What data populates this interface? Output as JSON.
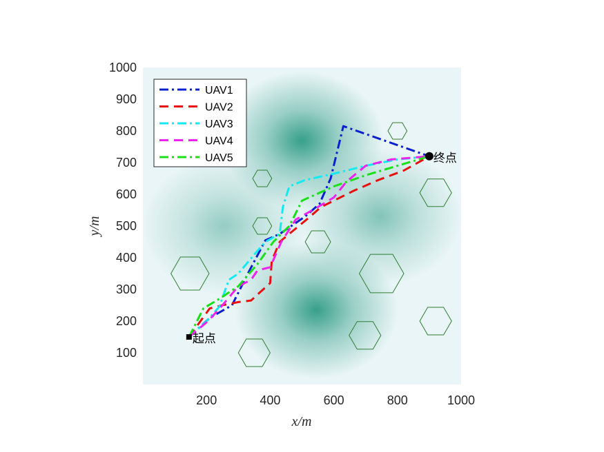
{
  "chart_data": {
    "type": "line",
    "xlabel": "x/m",
    "ylabel": "y/m",
    "xlim": [
      0,
      1000
    ],
    "ylim": [
      0,
      1000
    ],
    "xticks": [
      200,
      400,
      600,
      800,
      1000
    ],
    "yticks": [
      100,
      200,
      300,
      400,
      500,
      600,
      700,
      800,
      900,
      1000
    ],
    "grid": false,
    "legend_position": "top-left",
    "background_color": "#e9f5f6",
    "threat_color": "#2e9b85",
    "obstacle_color": "#2e7d32",
    "start": {
      "x": 145,
      "y": 150,
      "label": "起点"
    },
    "goal": {
      "x": 900,
      "y": 720,
      "label": "终点"
    },
    "threat_zones": [
      {
        "x": 500,
        "y": 770,
        "peak": 0.95
      },
      {
        "x": 545,
        "y": 235,
        "peak": 0.95
      },
      {
        "x": 745,
        "y": 530,
        "peak": 0.55
      },
      {
        "x": 255,
        "y": 500,
        "peak": 0.45
      }
    ],
    "obstacles": [
      {
        "x": 148,
        "y": 350,
        "r": 60
      },
      {
        "x": 350,
        "y": 100,
        "r": 50
      },
      {
        "x": 375,
        "y": 650,
        "r": 30
      },
      {
        "x": 375,
        "y": 500,
        "r": 30
      },
      {
        "x": 550,
        "y": 450,
        "r": 40
      },
      {
        "x": 750,
        "y": 350,
        "r": 70
      },
      {
        "x": 698,
        "y": 155,
        "r": 50
      },
      {
        "x": 800,
        "y": 800,
        "r": 30
      },
      {
        "x": 920,
        "y": 605,
        "r": 50
      },
      {
        "x": 920,
        "y": 200,
        "r": 50
      }
    ],
    "series": [
      {
        "name": "UAV1",
        "color": "#0a1fd0",
        "dash": "dashdot",
        "points": [
          [
            145,
            150
          ],
          [
            210,
            210
          ],
          [
            280,
            250
          ],
          [
            330,
            350
          ],
          [
            385,
            455
          ],
          [
            430,
            475
          ],
          [
            510,
            530
          ],
          [
            555,
            570
          ],
          [
            590,
            650
          ],
          [
            630,
            815
          ],
          [
            900,
            720
          ]
        ]
      },
      {
        "name": "UAV2",
        "color": "#e80f0f",
        "dash": "dashed",
        "points": [
          [
            145,
            150
          ],
          [
            210,
            240
          ],
          [
            250,
            250
          ],
          [
            300,
            260
          ],
          [
            340,
            265
          ],
          [
            400,
            320
          ],
          [
            405,
            390
          ],
          [
            430,
            450
          ],
          [
            520,
            525
          ],
          [
            560,
            560
          ],
          [
            660,
            610
          ],
          [
            740,
            645
          ],
          [
            820,
            675
          ],
          [
            900,
            720
          ]
        ]
      },
      {
        "name": "UAV3",
        "color": "#12eaf2",
        "dash": "dashdot",
        "points": [
          [
            145,
            150
          ],
          [
            200,
            200
          ],
          [
            240,
            245
          ],
          [
            270,
            330
          ],
          [
            300,
            350
          ],
          [
            350,
            410
          ],
          [
            385,
            450
          ],
          [
            430,
            475
          ],
          [
            440,
            560
          ],
          [
            460,
            625
          ],
          [
            510,
            645
          ],
          [
            600,
            665
          ],
          [
            700,
            690
          ],
          [
            800,
            710
          ],
          [
            900,
            720
          ]
        ]
      },
      {
        "name": "UAV4",
        "color": "#ee22ee",
        "dash": "dashed",
        "points": [
          [
            145,
            150
          ],
          [
            205,
            200
          ],
          [
            250,
            250
          ],
          [
            300,
            310
          ],
          [
            340,
            330
          ],
          [
            360,
            360
          ],
          [
            400,
            370
          ],
          [
            435,
            450
          ],
          [
            480,
            520
          ],
          [
            550,
            560
          ],
          [
            600,
            590
          ],
          [
            640,
            640
          ],
          [
            700,
            690
          ],
          [
            780,
            710
          ],
          [
            900,
            720
          ]
        ]
      },
      {
        "name": "UAV5",
        "color": "#19e019",
        "dash": "dashdot",
        "points": [
          [
            145,
            150
          ],
          [
            190,
            240
          ],
          [
            240,
            270
          ],
          [
            300,
            310
          ],
          [
            360,
            380
          ],
          [
            410,
            450
          ],
          [
            460,
            500
          ],
          [
            500,
            580
          ],
          [
            600,
            625
          ],
          [
            700,
            660
          ],
          [
            800,
            690
          ],
          [
            900,
            720
          ]
        ]
      }
    ]
  }
}
